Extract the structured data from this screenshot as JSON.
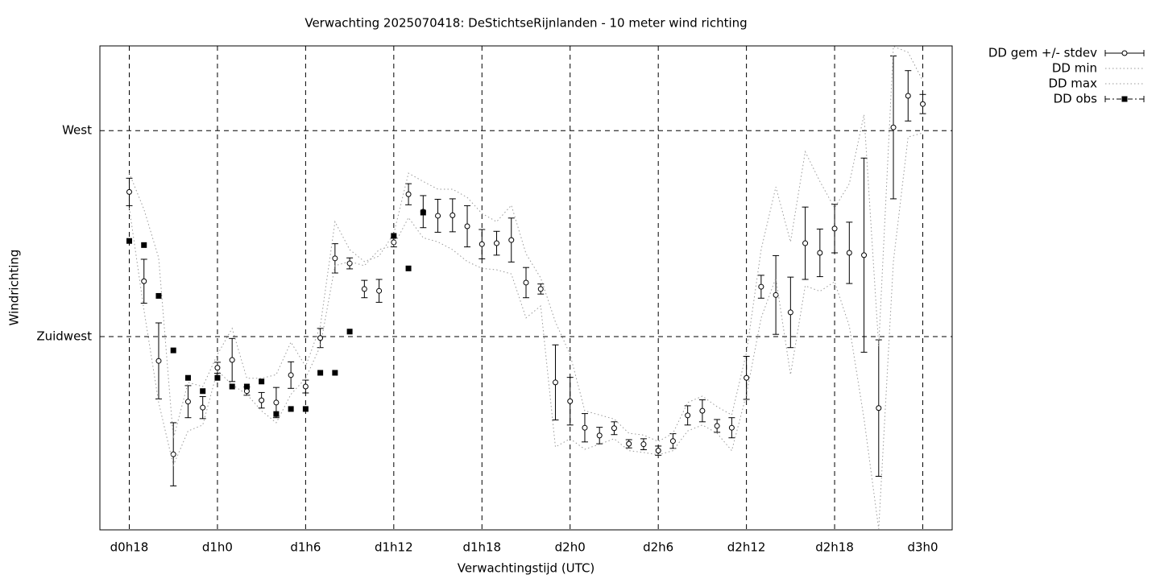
{
  "chart_data": {
    "type": "errorbar",
    "title": "Verwachting 2025070418: DeStichtseRijnlanden - 10 meter wind richting",
    "xlabel": "Verwachtingstijd (UTC)",
    "ylabel": "Windrichting",
    "x": [
      18,
      19,
      20,
      21,
      22,
      23,
      24,
      25,
      26,
      27,
      28,
      29,
      30,
      31,
      32,
      33,
      34,
      35,
      36,
      37,
      38,
      39,
      40,
      41,
      42,
      43,
      44,
      45,
      46,
      47,
      48,
      49,
      50,
      51,
      52,
      53,
      54,
      55,
      56,
      57,
      58,
      59,
      60,
      61,
      62,
      63,
      64,
      65,
      66,
      67,
      68,
      69,
      70,
      71,
      72
    ],
    "xlim": [
      16,
      74
    ],
    "xticks": [
      {
        "value": 18,
        "label": "d0h18"
      },
      {
        "value": 24,
        "label": "d1h0"
      },
      {
        "value": 30,
        "label": "d1h6"
      },
      {
        "value": 36,
        "label": "d1h12"
      },
      {
        "value": 42,
        "label": "d1h18"
      },
      {
        "value": 48,
        "label": "d2h0"
      },
      {
        "value": 54,
        "label": "d2h6"
      },
      {
        "value": 60,
        "label": "d2h12"
      },
      {
        "value": 66,
        "label": "d2h18"
      },
      {
        "value": 72,
        "label": "d3h0"
      }
    ],
    "ylim": [
      182.8,
      288.5
    ],
    "yticks": [
      {
        "value": 225,
        "label": "Zuidwest"
      },
      {
        "value": 270,
        "label": "West"
      }
    ],
    "grid": true,
    "legend": "outside-top-right",
    "series": [
      {
        "name": "DD gem +/- stdev",
        "color": "#000000",
        "style": "errorbar",
        "values": [
          256.6,
          237.1,
          219.7,
          199.3,
          210.8,
          209.5,
          218.2,
          219.9,
          213.1,
          211.1,
          210.6,
          216.6,
          214.1,
          224.7,
          242.1,
          241.0,
          235.4,
          235.0,
          245.6,
          256.1,
          252.3,
          251.4,
          251.5,
          249.1,
          245.2,
          245.4,
          246.1,
          236.8,
          235.4,
          215.0,
          210.9,
          205.1,
          203.4,
          205.0,
          201.6,
          201.5,
          200.1,
          202.2,
          207.8,
          208.8,
          205.5,
          205.1,
          216.0,
          235.9,
          234.1,
          230.3,
          245.4,
          243.3,
          248.6,
          243.3,
          242.8,
          209.4,
          270.7,
          277.6,
          275.8
        ],
        "errors": [
          3.0,
          4.8,
          8.3,
          6.9,
          3.5,
          2.4,
          1.2,
          4.7,
          0.9,
          1.7,
          3.3,
          2.9,
          1.4,
          2.1,
          3.2,
          1.2,
          1.9,
          2.5,
          1.0,
          2.3,
          3.5,
          3.6,
          3.6,
          4.5,
          3.2,
          2.6,
          4.8,
          3.3,
          1.1,
          8.2,
          5.2,
          3.1,
          1.8,
          1.4,
          0.9,
          1.2,
          1.0,
          1.6,
          2.1,
          2.4,
          1.4,
          2.2,
          4.7,
          2.5,
          8.6,
          7.7,
          7.9,
          5.2,
          5.3,
          6.7,
          21.2,
          14.9,
          15.6,
          5.5,
          2.1
        ]
      },
      {
        "name": "DD min",
        "color": "#999999",
        "style": "dotted",
        "values": [
          253.1,
          230.8,
          210.6,
          196.9,
          204.4,
          205.7,
          217.6,
          214.5,
          212.4,
          208.8,
          206.2,
          212.4,
          215.9,
          222.9,
          240.5,
          241.4,
          240.5,
          244.0,
          244.9,
          251.0,
          246.6,
          245.7,
          244.0,
          241.4,
          239.9,
          239.6,
          238.7,
          229.1,
          231.7,
          200.9,
          202.7,
          200.4,
          201.5,
          202.7,
          200.1,
          199.7,
          199.2,
          200.1,
          204.4,
          205.7,
          203.9,
          200.1,
          212.4,
          229.1,
          237.8,
          216.7,
          236.1,
          234.9,
          237.0,
          227.3,
          207.1,
          183.0,
          241.4,
          268.6,
          269.5
        ]
      },
      {
        "name": "DD max",
        "color": "#999999",
        "style": "dotted",
        "values": [
          260.7,
          252.8,
          242.2,
          202.7,
          215.0,
          214.1,
          221.1,
          226.8,
          215.9,
          215.9,
          216.7,
          223.8,
          218.5,
          227.3,
          250.1,
          244.0,
          241.4,
          242.6,
          247.5,
          260.7,
          258.9,
          257.2,
          257.2,
          255.4,
          251.9,
          250.1,
          253.7,
          243.1,
          237.8,
          228.2,
          221.1,
          208.8,
          207.9,
          207.0,
          203.9,
          203.5,
          202.1,
          203.9,
          210.6,
          212.0,
          209.7,
          207.9,
          221.5,
          244.0,
          257.7,
          245.7,
          265.4,
          258.9,
          253.1,
          258.4,
          273.5,
          222.9,
          288.4,
          287.1,
          280.9
        ]
      },
      {
        "name": "DD obs",
        "color": "#000000",
        "style": "square",
        "values": [
          245.9,
          245.0,
          233.9,
          222.0,
          216.0,
          213.1,
          216.0,
          214.1,
          214.1,
          215.2,
          208.1,
          209.2,
          209.2,
          217.1,
          217.1,
          226.1,
          null,
          null,
          247.0,
          239.9,
          252.1,
          null,
          null,
          null,
          null,
          null,
          null,
          null,
          null,
          null,
          null,
          null,
          null,
          null,
          null,
          null,
          null,
          null,
          null,
          null,
          null,
          null,
          null,
          null,
          null,
          null,
          null,
          null,
          null,
          null,
          null,
          null,
          null,
          null,
          null
        ]
      }
    ]
  }
}
